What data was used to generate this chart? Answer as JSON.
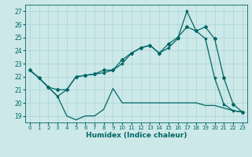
{
  "xlabel": "Humidex (Indice chaleur)",
  "bg_color": "#cce8e8",
  "grid_color": "#aad4d4",
  "line_color": "#006666",
  "xlim": [
    -0.5,
    23.5
  ],
  "ylim": [
    18.5,
    27.5
  ],
  "yticks": [
    19,
    20,
    21,
    22,
    23,
    24,
    25,
    26,
    27
  ],
  "xticks": [
    0,
    1,
    2,
    3,
    4,
    5,
    6,
    7,
    8,
    9,
    10,
    11,
    12,
    13,
    14,
    15,
    16,
    17,
    18,
    19,
    20,
    21,
    22,
    23
  ],
  "line1_x": [
    0,
    1,
    2,
    3,
    4,
    5,
    6,
    7,
    8,
    9,
    10,
    11,
    12,
    13,
    14,
    15,
    16,
    17,
    18,
    19,
    20,
    21,
    22,
    23
  ],
  "line1_y": [
    22.5,
    21.9,
    21.2,
    20.5,
    19.0,
    18.7,
    19.0,
    19.0,
    19.5,
    21.1,
    20.0,
    20.0,
    20.0,
    20.0,
    20.0,
    20.0,
    20.0,
    20.0,
    20.0,
    19.8,
    19.8,
    19.6,
    19.4,
    19.3
  ],
  "line2_x": [
    0,
    1,
    2,
    3,
    4,
    5,
    6,
    7,
    8,
    9,
    10,
    11,
    12,
    13,
    14,
    15,
    16,
    17,
    18,
    19,
    20,
    21,
    22,
    23
  ],
  "line2_y": [
    22.5,
    21.9,
    21.2,
    20.5,
    21.0,
    22.0,
    22.1,
    22.2,
    22.3,
    22.5,
    23.0,
    23.8,
    24.2,
    24.4,
    23.8,
    24.2,
    24.9,
    27.0,
    25.5,
    24.9,
    21.9,
    19.9,
    19.4,
    19.3
  ],
  "line3_x": [
    0,
    1,
    2,
    3,
    4,
    5,
    6,
    7,
    8,
    9,
    10,
    11,
    12,
    13,
    14,
    15,
    16,
    17,
    18,
    19,
    20,
    21,
    22,
    23
  ],
  "line3_y": [
    22.5,
    21.9,
    21.2,
    21.0,
    21.0,
    22.0,
    22.1,
    22.2,
    22.5,
    22.5,
    23.3,
    23.8,
    24.2,
    24.4,
    23.8,
    24.5,
    25.0,
    25.8,
    25.5,
    25.8,
    24.9,
    21.9,
    19.9,
    19.3
  ],
  "figsize": [
    3.2,
    2.0
  ],
  "dpi": 100
}
